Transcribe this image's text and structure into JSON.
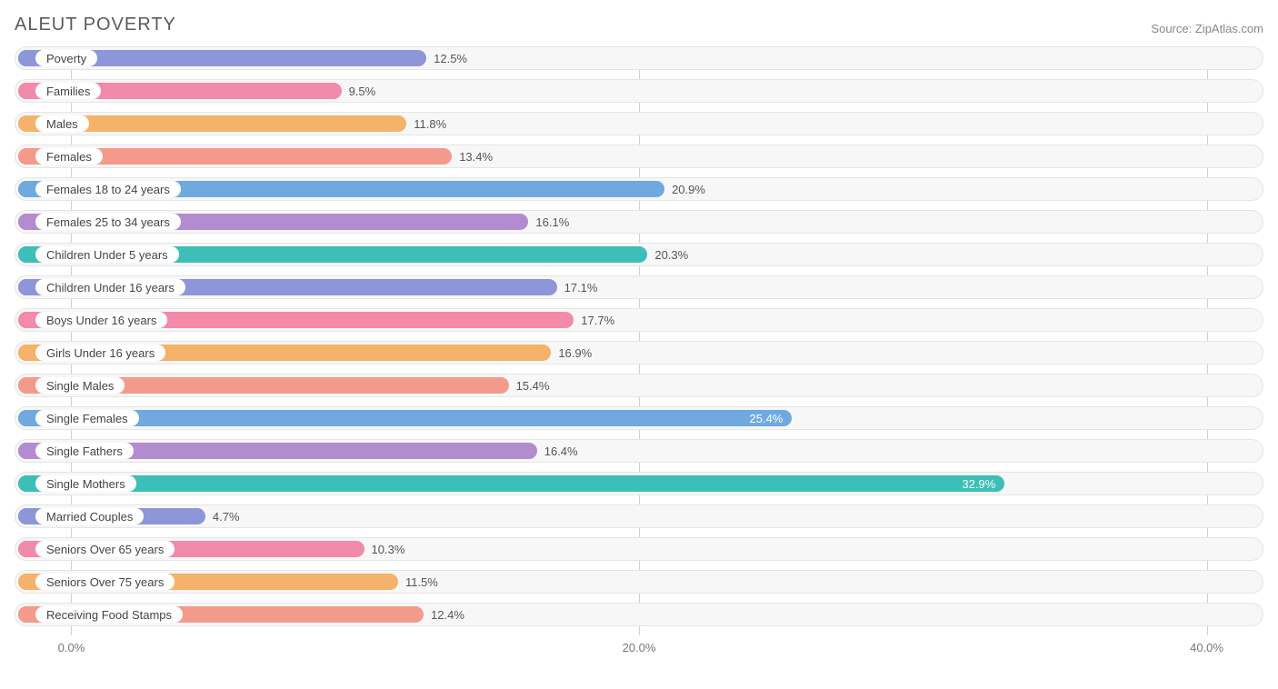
{
  "title": "ALEUT POVERTY",
  "source_label": "Source:",
  "source_name": "ZipAtlas.com",
  "chart": {
    "type": "bar-horizontal",
    "x_min": -2.0,
    "x_max": 42.0,
    "ticks": [
      0.0,
      20.0,
      40.0
    ],
    "tick_labels": [
      "0.0%",
      "20.0%",
      "40.0%"
    ],
    "track_bg": "#f7f7f7",
    "track_border": "#e5e5e5",
    "grid_color": "#d0d0d0",
    "value_inside_threshold": 24.0,
    "colors": {
      "periwinkle": "#8d96d9",
      "pink": "#f28aa9",
      "orange": "#f4b26a",
      "salmon": "#f49a8a",
      "blue": "#6fa9e0",
      "purple": "#b38ccf",
      "teal": "#3cbfb6"
    },
    "bars": [
      {
        "label": "Poverty",
        "value": 12.5,
        "display": "12.5%",
        "color": "periwinkle"
      },
      {
        "label": "Families",
        "value": 9.5,
        "display": "9.5%",
        "color": "pink"
      },
      {
        "label": "Males",
        "value": 11.8,
        "display": "11.8%",
        "color": "orange"
      },
      {
        "label": "Females",
        "value": 13.4,
        "display": "13.4%",
        "color": "salmon"
      },
      {
        "label": "Females 18 to 24 years",
        "value": 20.9,
        "display": "20.9%",
        "color": "blue"
      },
      {
        "label": "Females 25 to 34 years",
        "value": 16.1,
        "display": "16.1%",
        "color": "purple"
      },
      {
        "label": "Children Under 5 years",
        "value": 20.3,
        "display": "20.3%",
        "color": "teal"
      },
      {
        "label": "Children Under 16 years",
        "value": 17.1,
        "display": "17.1%",
        "color": "periwinkle"
      },
      {
        "label": "Boys Under 16 years",
        "value": 17.7,
        "display": "17.7%",
        "color": "pink"
      },
      {
        "label": "Girls Under 16 years",
        "value": 16.9,
        "display": "16.9%",
        "color": "orange"
      },
      {
        "label": "Single Males",
        "value": 15.4,
        "display": "15.4%",
        "color": "salmon"
      },
      {
        "label": "Single Females",
        "value": 25.4,
        "display": "25.4%",
        "color": "blue"
      },
      {
        "label": "Single Fathers",
        "value": 16.4,
        "display": "16.4%",
        "color": "purple"
      },
      {
        "label": "Single Mothers",
        "value": 32.9,
        "display": "32.9%",
        "color": "teal"
      },
      {
        "label": "Married Couples",
        "value": 4.7,
        "display": "4.7%",
        "color": "periwinkle"
      },
      {
        "label": "Seniors Over 65 years",
        "value": 10.3,
        "display": "10.3%",
        "color": "pink"
      },
      {
        "label": "Seniors Over 75 years",
        "value": 11.5,
        "display": "11.5%",
        "color": "orange"
      },
      {
        "label": "Receiving Food Stamps",
        "value": 12.4,
        "display": "12.4%",
        "color": "salmon"
      }
    ]
  }
}
